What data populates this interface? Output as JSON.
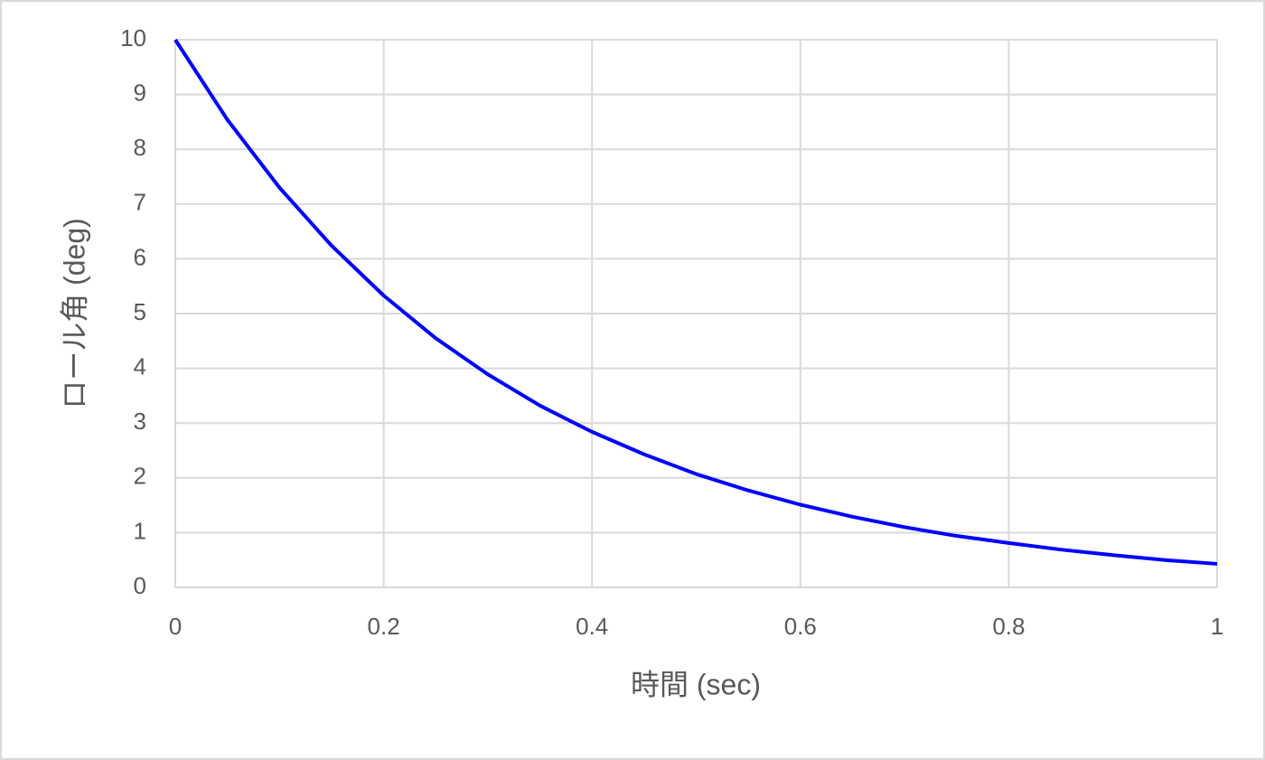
{
  "chart_data": {
    "type": "line",
    "x_label": "時間 (sec)",
    "y_label": "ロール角 (deg)",
    "x": [
      0,
      0.05,
      0.1,
      0.15,
      0.2,
      0.25,
      0.3,
      0.35,
      0.4,
      0.45,
      0.5,
      0.55,
      0.6,
      0.65,
      0.7,
      0.75,
      0.8,
      0.85,
      0.9,
      0.95,
      1
    ],
    "series": [
      {
        "color": "#0000ff",
        "values": [
          10,
          8.54,
          7.3,
          6.24,
          5.33,
          4.55,
          3.89,
          3.32,
          2.84,
          2.43,
          2.07,
          1.77,
          1.51,
          1.29,
          1.1,
          0.94,
          0.81,
          0.69,
          0.59,
          0.5,
          0.43
        ]
      }
    ],
    "xlim": [
      0,
      1
    ],
    "xticks": [
      0,
      0.2,
      0.4,
      0.6,
      0.8,
      1
    ],
    "ylim": [
      0,
      10
    ],
    "yticks": [
      0,
      1,
      2,
      3,
      4,
      5,
      6,
      7,
      8,
      9,
      10
    ],
    "grid": true
  }
}
